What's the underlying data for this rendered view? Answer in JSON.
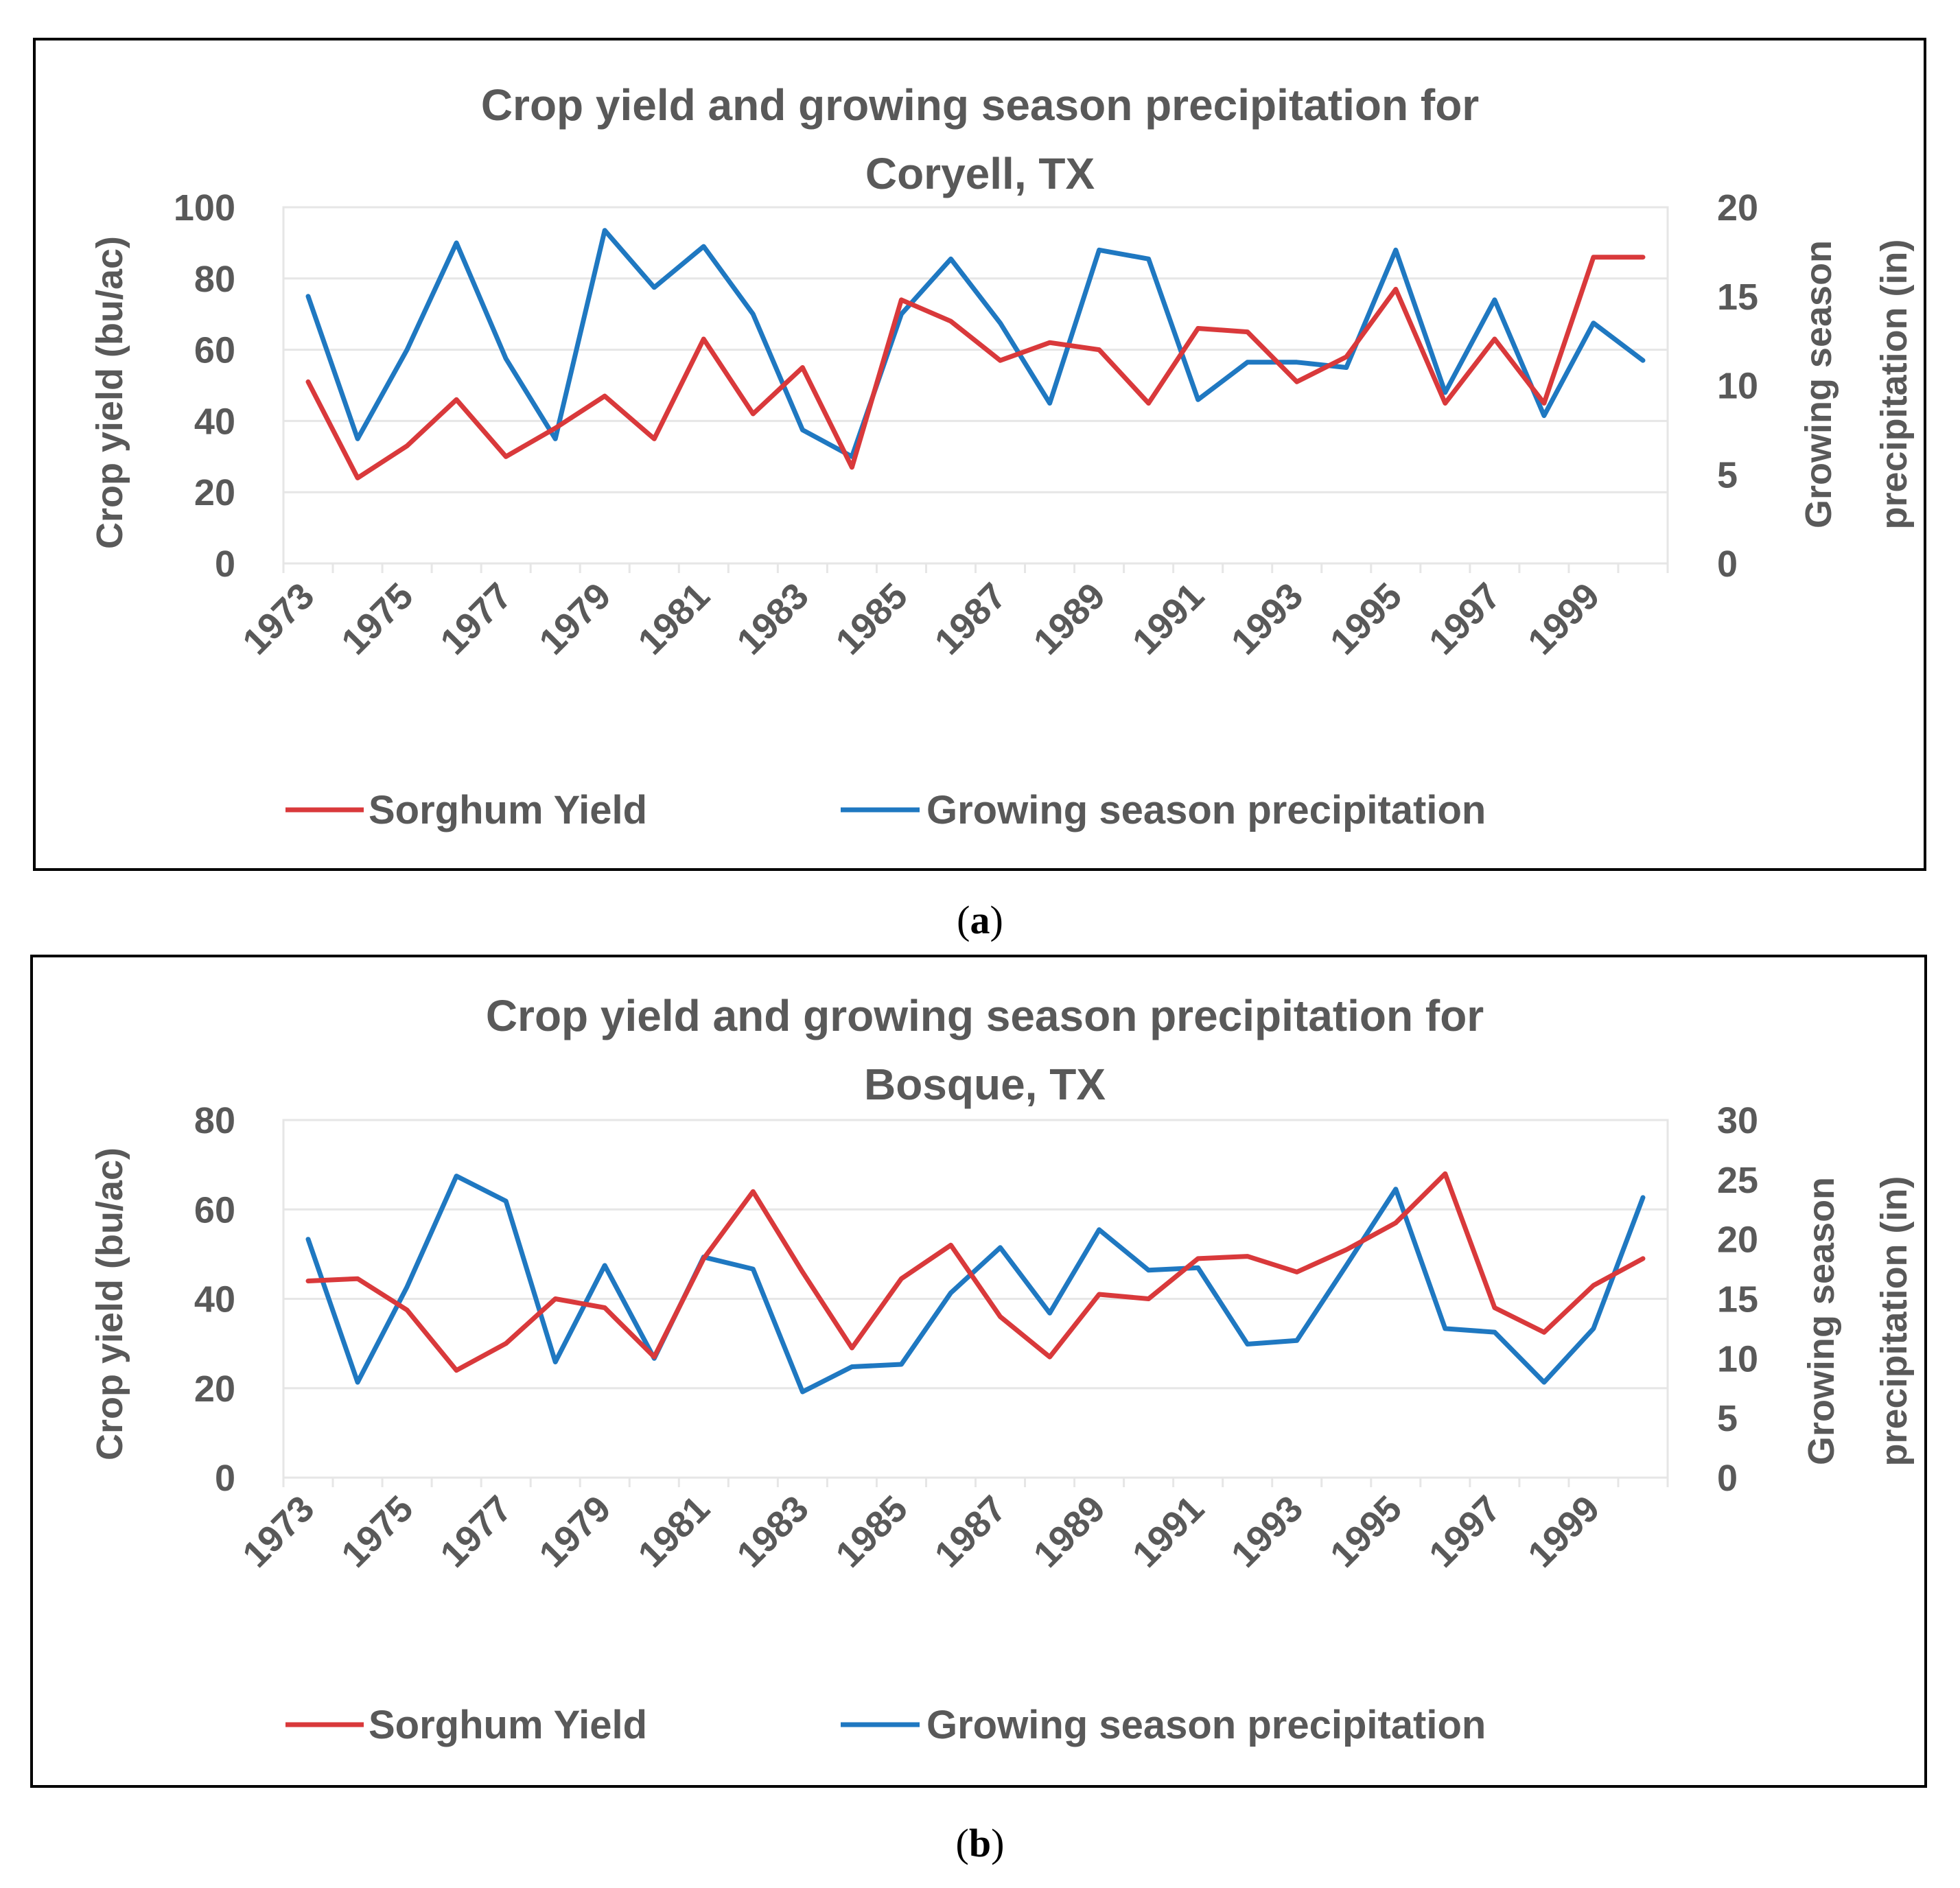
{
  "colors": {
    "sorghum": "#d9393b",
    "precip": "#1f78c1",
    "grid": "#e6e6e6",
    "text": "#595959",
    "frame": "#000000"
  },
  "chart_data": [
    {
      "type": "line",
      "caption": "a",
      "title_line1": "Crop yield and growing season precipitation for",
      "title_line2": "Coryell, TX",
      "ylabel": "Crop yield (bu/ac)",
      "y2label_line1": "Growing season",
      "y2label_line2": "precipitation (in)",
      "ylim": [
        0,
        100
      ],
      "yticks": [
        "0",
        "20",
        "40",
        "60",
        "80",
        "100"
      ],
      "y2lim": [
        0,
        20
      ],
      "y2ticks": [
        "0",
        "5",
        "10",
        "15",
        "20"
      ],
      "x": [
        1973,
        1974,
        1975,
        1976,
        1977,
        1978,
        1979,
        1980,
        1981,
        1982,
        1983,
        1984,
        1985,
        1986,
        1987,
        1988,
        1989,
        1990,
        1991,
        1992,
        1993,
        1994,
        1995,
        1996,
        1997,
        1998,
        1999,
        2000
      ],
      "xtick_labels": [
        "1973",
        "1975",
        "1977",
        "1979",
        "1981",
        "1983",
        "1985",
        "1987",
        "1989",
        "1991",
        "1993",
        "1995",
        "1997",
        "1999"
      ],
      "series": [
        {
          "name": "Sorghum Yield",
          "axis": "left",
          "values": [
            51,
            24,
            33,
            46,
            30,
            38,
            47,
            35,
            63,
            42,
            55,
            27,
            74,
            68,
            57,
            62,
            60,
            45,
            66,
            65,
            51,
            58,
            77,
            45,
            63,
            45,
            86,
            86
          ]
        },
        {
          "name": "Growing season precipitation",
          "axis": "right",
          "values": [
            15,
            7,
            12,
            18,
            11.5,
            7,
            18.7,
            15.5,
            17.8,
            14,
            7.5,
            6,
            14,
            17.1,
            13.5,
            9,
            17.6,
            17.1,
            9.2,
            11.3,
            11.3,
            11,
            17.6,
            9.6,
            14.8,
            8.3,
            13.5,
            11.4
          ]
        }
      ]
    },
    {
      "type": "line",
      "caption": "b",
      "title_line1": "Crop yield and growing season precipitation for",
      "title_line2": "Bosque, TX",
      "ylabel": "Crop yield (bu/ac)",
      "y2label_line1": "Growing season",
      "y2label_line2": "precipitation (in)",
      "ylim": [
        0,
        80
      ],
      "yticks": [
        "0",
        "20",
        "40",
        "60",
        "80"
      ],
      "y2lim": [
        0,
        30
      ],
      "y2ticks": [
        "0",
        "5",
        "10",
        "15",
        "20",
        "25",
        "30"
      ],
      "x": [
        1973,
        1974,
        1975,
        1976,
        1977,
        1978,
        1979,
        1980,
        1981,
        1982,
        1983,
        1984,
        1985,
        1986,
        1987,
        1988,
        1989,
        1990,
        1991,
        1992,
        1993,
        1994,
        1995,
        1996,
        1997,
        1998,
        1999,
        2000
      ],
      "xtick_labels": [
        "1973",
        "1975",
        "1977",
        "1979",
        "1981",
        "1983",
        "1985",
        "1987",
        "1989",
        "1991",
        "1993",
        "1995",
        "1997",
        "1999"
      ],
      "series": [
        {
          "name": "Sorghum Yield",
          "axis": "left",
          "values": [
            44,
            44.5,
            37.5,
            24,
            30,
            40,
            38,
            27,
            49,
            64,
            46,
            29,
            44.5,
            52,
            36,
            27,
            41,
            40,
            49,
            49.5,
            46,
            51,
            57,
            68,
            38,
            32.5,
            43,
            49
          ]
        },
        {
          "name": "Growing season precipitation",
          "axis": "right",
          "values": [
            20,
            8,
            16,
            25.3,
            23.2,
            9.7,
            17.8,
            10,
            18.5,
            17.5,
            7.2,
            9.3,
            9.5,
            15.5,
            19.3,
            13.8,
            20.8,
            17.4,
            17.6,
            11.2,
            11.5,
            17.8,
            24.2,
            12.5,
            12.2,
            8,
            12.5,
            23.5
          ]
        }
      ]
    }
  ]
}
